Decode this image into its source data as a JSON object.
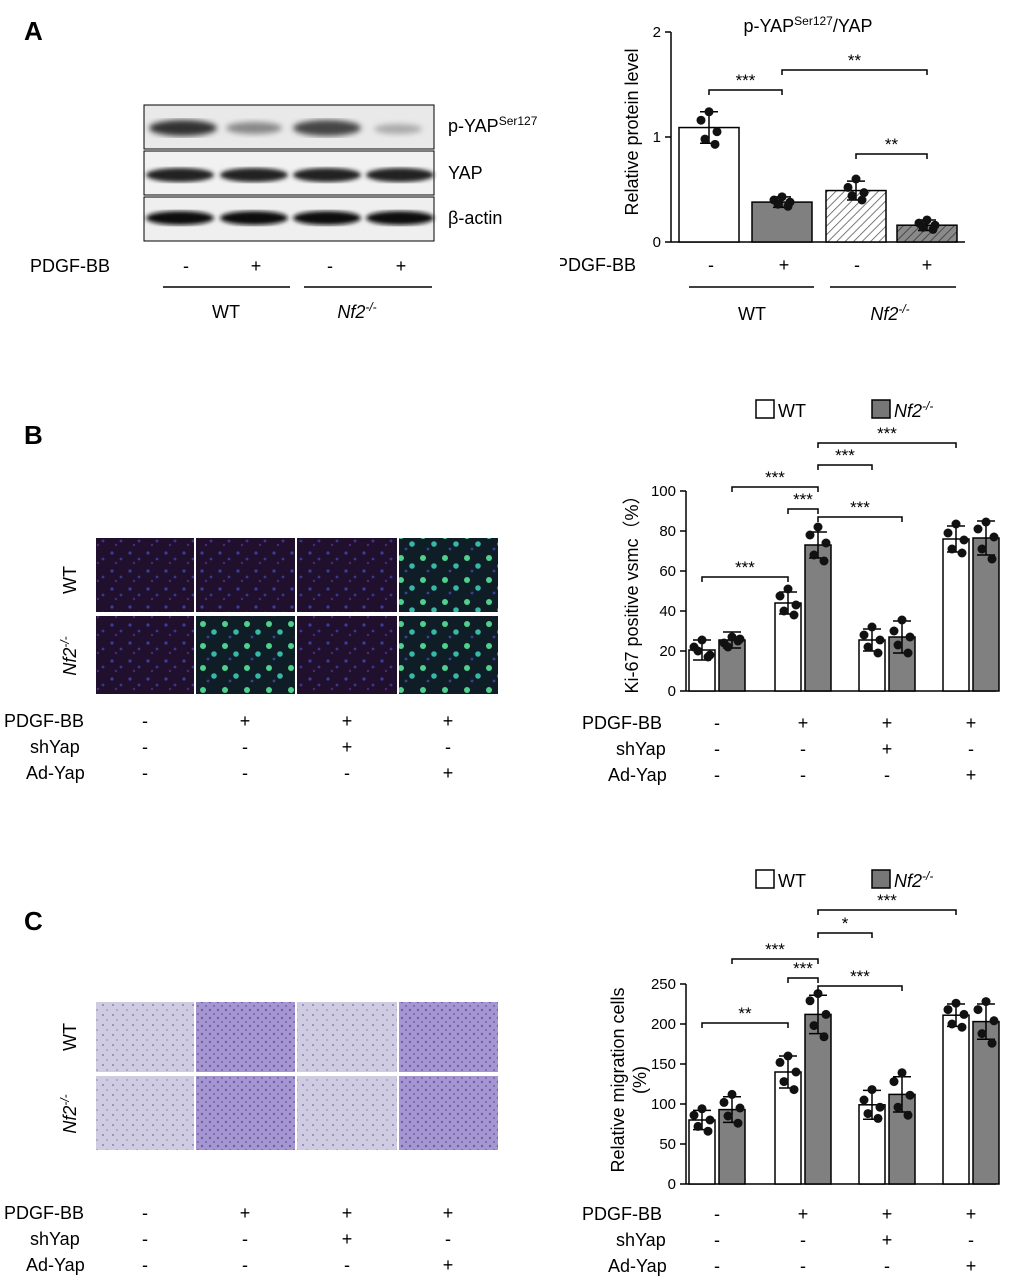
{
  "panels": {
    "A": {
      "letter": "A",
      "blot": {
        "bands": [
          {
            "label": "p-YAP",
            "sup": "Ser127"
          },
          {
            "label": "YAP",
            "sup": ""
          },
          {
            "label": "β-actin",
            "sup": ""
          }
        ],
        "treatment_label": "PDGF-BB",
        "signs": [
          "-",
          "+",
          "-",
          "+"
        ],
        "groups": [
          "WT",
          "Nf2"
        ],
        "group_sup": [
          "",
          "-/-"
        ]
      },
      "chart": {
        "title_main": "p-YAP",
        "title_sup": "Ser127",
        "title_tail": "/YAP",
        "ylabel": "Relative protein level",
        "treatment_label": "PDGF-BB",
        "signs": [
          "-",
          "+",
          "-",
          "+"
        ],
        "groups": [
          "WT",
          "Nf2"
        ],
        "group_sup": [
          "",
          "-/-"
        ]
      }
    },
    "B": {
      "letter": "B",
      "image_row_labels": [
        "WT",
        "Nf2"
      ],
      "image_row_sup": [
        "",
        "-/-"
      ],
      "conditions": [
        {
          "label": "PDGF-BB",
          "signs": [
            "-",
            "+",
            "+",
            "+"
          ]
        },
        {
          "label": "shYap",
          "signs": [
            "-",
            "-",
            "+",
            "-"
          ]
        },
        {
          "label": "Ad-Yap",
          "signs": [
            "-",
            "-",
            "-",
            "+"
          ]
        }
      ],
      "legend": [
        "WT",
        "Nf2"
      ],
      "legend_sup": [
        "",
        "-/-"
      ],
      "ylabel": "Ki-67 positive vsmc（%）"
    },
    "C": {
      "letter": "C",
      "image_row_labels": [
        "WT",
        "Nf2"
      ],
      "image_row_sup": [
        "",
        "-/-"
      ],
      "conditions": [
        {
          "label": "PDGF-BB",
          "signs": [
            "-",
            "+",
            "+",
            "+"
          ]
        },
        {
          "label": "shYap",
          "signs": [
            "-",
            "-",
            "+",
            "-"
          ]
        },
        {
          "label": "Ad-Yap",
          "signs": [
            "-",
            "-",
            "-",
            "+"
          ]
        }
      ],
      "legend": [
        "WT",
        "Nf2"
      ],
      "legend_sup": [
        "",
        "-/-"
      ],
      "ylabel_lines": [
        "Relative migration cells",
        "(%)"
      ]
    }
  },
  "chart_data": [
    {
      "panel": "A",
      "type": "bar",
      "title": "p-YAPSer127/YAP",
      "ylabel": "Relative protein level",
      "ylim": [
        0,
        2
      ],
      "yticks": [
        0,
        1,
        2
      ],
      "categories": [
        "WT -",
        "WT +",
        "Nf2-/- -",
        "Nf2-/- +"
      ],
      "values": [
        1.09,
        0.38,
        0.49,
        0.16
      ],
      "errors": [
        0.15,
        0.05,
        0.09,
        0.05
      ],
      "fills": [
        "white",
        "gray",
        "hatch",
        "hatch-gray"
      ],
      "points": [
        [
          1.24,
          1.16,
          1.05,
          0.98,
          0.93
        ],
        [
          0.43,
          0.4,
          0.38,
          0.36,
          0.34
        ],
        [
          0.6,
          0.52,
          0.47,
          0.44,
          0.4
        ],
        [
          0.21,
          0.18,
          0.16,
          0.14,
          0.12
        ]
      ],
      "significance": [
        {
          "from": 0,
          "to": 1,
          "label": "***"
        },
        {
          "from": 1,
          "to": 3,
          "label": "**"
        },
        {
          "from": 2,
          "to": 3,
          "label": "**"
        }
      ]
    },
    {
      "panel": "B",
      "type": "bar",
      "ylabel": "Ki-67 positive vsmc（%）",
      "ylim": [
        0,
        100
      ],
      "yticks": [
        0,
        20,
        40,
        60,
        80,
        100
      ],
      "categories": [
        "-/-/-",
        "PDGF-BB",
        "PDGF-BB+shYap",
        "PDGF-BB+Ad-Yap"
      ],
      "series": [
        {
          "name": "WT",
          "values": [
            20.5,
            44,
            25.5,
            76
          ],
          "errors": [
            5,
            5.5,
            5.5,
            6.5
          ],
          "points": [
            [
              25.5,
              22,
              18,
              20,
              17
            ],
            [
              51,
              47.5,
              43,
              40,
              38
            ],
            [
              32,
              28,
              25.5,
              22,
              19
            ],
            [
              83.5,
              79,
              75.5,
              71,
              69
            ]
          ]
        },
        {
          "name": "Nf2-/-",
          "values": [
            25.5,
            73,
            27,
            76.5
          ],
          "errors": [
            4,
            6.5,
            8,
            8.5
          ],
          "points": [
            [
              27,
              24,
              26,
              22,
              25
            ],
            [
              82,
              78,
              74,
              68,
              65
            ],
            [
              35.5,
              30,
              27,
              23,
              19
            ],
            [
              84.5,
              81,
              77,
              71,
              66
            ]
          ]
        }
      ],
      "significance": [
        {
          "from": "0.WT",
          "to": "1.WT",
          "label": "***"
        },
        {
          "from": "0.Nf2",
          "to": "1.Nf2",
          "label": "***"
        },
        {
          "from": "1.WT",
          "to": "1.Nf2",
          "label": "***"
        },
        {
          "from": "1.Nf2",
          "to": "2.Nf2",
          "label": "***"
        },
        {
          "from": "1.Nf2",
          "to": "2.WT",
          "label": "***"
        },
        {
          "from": "1.Nf2",
          "to": "3.WT",
          "label": "***"
        }
      ]
    },
    {
      "panel": "C",
      "type": "bar",
      "ylabel": "Relative migration cells (%)",
      "ylim": [
        0,
        250
      ],
      "yticks": [
        0,
        50,
        100,
        150,
        200,
        250
      ],
      "categories": [
        "-/-/-",
        "PDGF-BB",
        "PDGF-BB+shYap",
        "PDGF-BB+Ad-Yap"
      ],
      "series": [
        {
          "name": "WT",
          "values": [
            80,
            140,
            99,
            211
          ],
          "errors": [
            12,
            20,
            18,
            14
          ],
          "points": [
            [
              94,
              86,
              80,
              72,
              66
            ],
            [
              160,
              152,
              140,
              128,
              118
            ],
            [
              118,
              105,
              96,
              88,
              82
            ],
            [
              226,
              218,
              212,
              200,
              196
            ]
          ],
          "_": null
        },
        {
          "name": "Nf2-/-",
          "values": [
            93,
            212,
            112,
            203
          ],
          "errors": [
            16,
            24,
            22,
            22
          ],
          "points": [
            [
              112,
              102,
              95,
              85,
              76
            ],
            [
              238,
              229,
              212,
              198,
              184
            ],
            [
              139,
              128,
              111,
              96,
              86
            ],
            [
              228,
              218,
              204,
              188,
              176
            ]
          ]
        }
      ],
      "significance": [
        {
          "from": "0.WT",
          "to": "1.WT",
          "label": "**"
        },
        {
          "from": "0.Nf2",
          "to": "1.Nf2",
          "label": "***"
        },
        {
          "from": "1.WT",
          "to": "1.Nf2",
          "label": "***"
        },
        {
          "from": "1.Nf2",
          "to": "2.Nf2",
          "label": "***"
        },
        {
          "from": "1.Nf2",
          "to": "2.WT",
          "label": "*"
        },
        {
          "from": "1.Nf2",
          "to": "3.WT",
          "label": "***"
        }
      ]
    }
  ]
}
